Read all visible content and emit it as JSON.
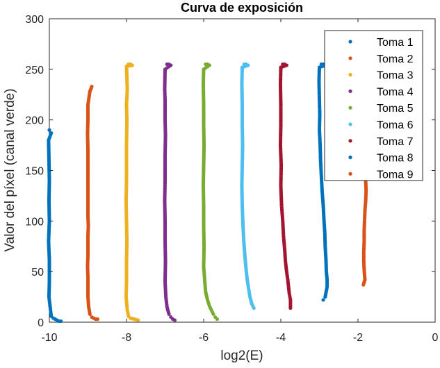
{
  "chart_data": {
    "type": "scatter",
    "title": "Curva de exposición",
    "xlabel": "log2(E)",
    "ylabel": "Valor del píxel (canal verde)",
    "xlim": [
      -10,
      0
    ],
    "ylim": [
      0,
      300
    ],
    "x_ticks": [
      -10,
      -8,
      -6,
      -4,
      -2,
      0
    ],
    "y_ticks": [
      0,
      50,
      100,
      150,
      200,
      250,
      300
    ],
    "grid": false,
    "legend_position": "top-right",
    "series": [
      {
        "name": "Toma 1",
        "color": "#0072BD",
        "points": [
          [
            -10.0,
            190
          ],
          [
            -9.95,
            187
          ],
          [
            -10.02,
            180
          ],
          [
            -10.01,
            160
          ],
          [
            -10.0,
            140
          ],
          [
            -10.01,
            120
          ],
          [
            -10.0,
            100
          ],
          [
            -10.02,
            80
          ],
          [
            -10.0,
            62
          ],
          [
            -10.0,
            40
          ],
          [
            -10.01,
            25
          ],
          [
            -9.97,
            12
          ],
          [
            -9.95,
            6
          ],
          [
            -9.9,
            4
          ],
          [
            -9.85,
            3
          ],
          [
            -9.8,
            2
          ],
          [
            -9.75,
            1
          ],
          [
            -9.7,
            1
          ]
        ]
      },
      {
        "name": "Toma 2",
        "color": "#D95319",
        "points": [
          [
            -8.9,
            233
          ],
          [
            -8.95,
            228
          ],
          [
            -9.0,
            215
          ],
          [
            -9.0,
            200
          ],
          [
            -9.01,
            187
          ],
          [
            -9.0,
            170
          ],
          [
            -9.0,
            116
          ],
          [
            -9.0,
            105
          ],
          [
            -8.99,
            95
          ],
          [
            -9.0,
            85
          ],
          [
            -9.0,
            75
          ],
          [
            -9.0,
            65
          ],
          [
            -9.01,
            55
          ],
          [
            -9.0,
            45
          ],
          [
            -9.0,
            35
          ],
          [
            -9.0,
            25
          ],
          [
            -8.98,
            15
          ],
          [
            -8.95,
            8
          ],
          [
            -8.9,
            5
          ],
          [
            -8.85,
            4
          ],
          [
            -8.8,
            3
          ],
          [
            -8.75,
            3
          ]
        ]
      },
      {
        "name": "Toma 3",
        "color": "#EDB120",
        "points": [
          [
            -7.95,
            255
          ],
          [
            -7.9,
            255
          ],
          [
            -7.85,
            254
          ],
          [
            -8.0,
            253
          ],
          [
            -7.98,
            230
          ],
          [
            -8.0,
            215
          ],
          [
            -7.99,
            200
          ],
          [
            -8.0,
            175
          ],
          [
            -8.0,
            160
          ],
          [
            -8.0,
            140
          ],
          [
            -8.01,
            120
          ],
          [
            -8.0,
            100
          ],
          [
            -7.99,
            80
          ],
          [
            -8.0,
            60
          ],
          [
            -8.0,
            40
          ],
          [
            -8.01,
            25
          ],
          [
            -7.98,
            12
          ],
          [
            -7.95,
            6
          ],
          [
            -7.9,
            4
          ],
          [
            -7.8,
            3
          ],
          [
            -7.7,
            2
          ]
        ]
      },
      {
        "name": "Toma 4",
        "color": "#7E2F8E",
        "points": [
          [
            -6.95,
            255
          ],
          [
            -6.9,
            255
          ],
          [
            -6.85,
            254
          ],
          [
            -7.0,
            250
          ],
          [
            -7.01,
            230
          ],
          [
            -7.0,
            220
          ],
          [
            -7.0,
            200
          ],
          [
            -6.99,
            185
          ],
          [
            -7.0,
            165
          ],
          [
            -7.0,
            140
          ],
          [
            -7.01,
            120
          ],
          [
            -7.0,
            100
          ],
          [
            -7.0,
            80
          ],
          [
            -6.99,
            60
          ],
          [
            -7.0,
            40
          ],
          [
            -6.98,
            25
          ],
          [
            -6.95,
            15
          ],
          [
            -6.9,
            8
          ],
          [
            -6.85,
            5
          ],
          [
            -6.8,
            3
          ],
          [
            -6.75,
            2
          ]
        ]
      },
      {
        "name": "Toma 5",
        "color": "#77AC30",
        "points": [
          [
            -5.95,
            255
          ],
          [
            -5.9,
            255
          ],
          [
            -5.85,
            254
          ],
          [
            -6.0,
            250
          ],
          [
            -6.01,
            235
          ],
          [
            -6.0,
            215
          ],
          [
            -6.0,
            195
          ],
          [
            -5.99,
            175
          ],
          [
            -6.0,
            155
          ],
          [
            -6.01,
            135
          ],
          [
            -6.0,
            115
          ],
          [
            -6.0,
            95
          ],
          [
            -5.99,
            75
          ],
          [
            -6.0,
            55
          ],
          [
            -5.97,
            40
          ],
          [
            -5.95,
            30
          ],
          [
            -5.9,
            22
          ],
          [
            -5.85,
            16
          ],
          [
            -5.8,
            12
          ],
          [
            -5.75,
            8
          ],
          [
            -5.7,
            5
          ],
          [
            -5.65,
            3
          ]
        ]
      },
      {
        "name": "Toma 6",
        "color": "#4DBEEE",
        "points": [
          [
            -4.95,
            255
          ],
          [
            -4.9,
            255
          ],
          [
            -4.85,
            254
          ],
          [
            -5.0,
            252
          ],
          [
            -5.01,
            235
          ],
          [
            -5.0,
            215
          ],
          [
            -5.0,
            195
          ],
          [
            -4.99,
            175
          ],
          [
            -5.0,
            155
          ],
          [
            -5.01,
            135
          ],
          [
            -5.0,
            115
          ],
          [
            -4.98,
            95
          ],
          [
            -4.96,
            80
          ],
          [
            -4.93,
            65
          ],
          [
            -4.9,
            52
          ],
          [
            -4.87,
            42
          ],
          [
            -4.83,
            32
          ],
          [
            -4.8,
            25
          ],
          [
            -4.75,
            18
          ],
          [
            -4.7,
            14
          ]
        ]
      },
      {
        "name": "Toma 7",
        "color": "#A2142F",
        "points": [
          [
            -3.95,
            255
          ],
          [
            -3.9,
            255
          ],
          [
            -3.85,
            254
          ],
          [
            -4.0,
            252
          ],
          [
            -4.01,
            235
          ],
          [
            -4.0,
            215
          ],
          [
            -4.0,
            195
          ],
          [
            -4.01,
            175
          ],
          [
            -3.99,
            155
          ],
          [
            -4.0,
            135
          ],
          [
            -3.98,
            115
          ],
          [
            -3.95,
            100
          ],
          [
            -3.93,
            85
          ],
          [
            -3.9,
            72
          ],
          [
            -3.88,
            60
          ],
          [
            -3.85,
            50
          ],
          [
            -3.82,
            42
          ],
          [
            -3.8,
            35
          ],
          [
            -3.78,
            28
          ],
          [
            -3.75,
            22
          ],
          [
            -3.75,
            14
          ]
        ]
      },
      {
        "name": "Toma 8",
        "color": "#0072BD",
        "points": [
          [
            -2.95,
            255
          ],
          [
            -2.9,
            255
          ],
          [
            -2.85,
            254
          ],
          [
            -3.0,
            252
          ],
          [
            -3.01,
            238
          ],
          [
            -3.0,
            220
          ],
          [
            -2.99,
            205
          ],
          [
            -3.0,
            190
          ],
          [
            -2.98,
            175
          ],
          [
            -2.97,
            160
          ],
          [
            -2.95,
            145
          ],
          [
            -2.93,
            130
          ],
          [
            -2.9,
            115
          ],
          [
            -2.88,
            100
          ],
          [
            -2.86,
            88
          ],
          [
            -2.85,
            75
          ],
          [
            -2.83,
            62
          ],
          [
            -2.82,
            50
          ],
          [
            -2.8,
            42
          ],
          [
            -2.8,
            35
          ],
          [
            -2.85,
            25
          ],
          [
            -2.9,
            22
          ]
        ]
      },
      {
        "name": "Toma 9",
        "color": "#D95319",
        "points": [
          [
            -1.95,
            255
          ],
          [
            -1.92,
            250
          ],
          [
            -1.9,
            240
          ],
          [
            -1.88,
            228
          ],
          [
            -1.86,
            215
          ],
          [
            -1.85,
            200
          ],
          [
            -1.84,
            185
          ],
          [
            -1.83,
            170
          ],
          [
            -1.82,
            155
          ],
          [
            -1.8,
            140
          ],
          [
            -1.79,
            130
          ],
          [
            -1.8,
            120
          ],
          [
            -1.82,
            110
          ],
          [
            -1.83,
            100
          ],
          [
            -1.84,
            90
          ],
          [
            -1.84,
            80
          ],
          [
            -1.85,
            70
          ],
          [
            -1.85,
            60
          ],
          [
            -1.84,
            52
          ],
          [
            -1.82,
            42
          ],
          [
            -1.86,
            37
          ]
        ]
      }
    ]
  }
}
